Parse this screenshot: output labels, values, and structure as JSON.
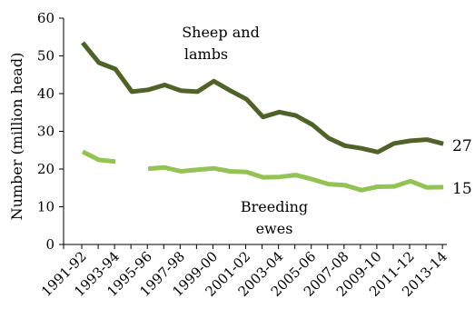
{
  "chart_data": {
    "type": "line",
    "title": "",
    "xlabel": "",
    "ylabel": "Number (million head)",
    "ylim": [
      0,
      60
    ],
    "yticks": [
      0,
      10,
      20,
      30,
      40,
      50,
      60
    ],
    "grid": false,
    "legend": "none",
    "x": [
      "1991-92",
      "1992-93",
      "1993-94",
      "1994-95",
      "1995-96",
      "1996-97",
      "1997-98",
      "1998-99",
      "1999-00",
      "2000-01",
      "2001-02",
      "2002-03",
      "2003-04",
      "2004-05",
      "2005-06",
      "2006-07",
      "2007-08",
      "2008-09",
      "2009-10",
      "2010-11",
      "2011-12",
      "2012-13",
      "2013-14"
    ],
    "xtick_labels": [
      "1991-92",
      "1993-94",
      "1995-96",
      "1997-98",
      "1999-00",
      "2001-02",
      "2003-04",
      "2005-06",
      "2007-08",
      "2009-10",
      "2011-12",
      "2013-14"
    ],
    "series": [
      {
        "name": "Sheep and lambs",
        "color": "#4f6228",
        "end_label": "27",
        "values": [
          53.5,
          48.2,
          46.5,
          40.5,
          41.0,
          42.3,
          40.8,
          40.5,
          43.3,
          40.8,
          38.5,
          33.8,
          35.1,
          34.2,
          31.8,
          28.2,
          26.2,
          25.5,
          24.5,
          26.8,
          27.5,
          27.8,
          26.7
        ]
      },
      {
        "name": "Breeding ewes",
        "color": "#92c353",
        "end_label": "15",
        "values": [
          24.6,
          22.4,
          22.0,
          null,
          20.1,
          20.4,
          19.4,
          19.8,
          20.2,
          19.4,
          19.2,
          17.8,
          17.9,
          18.4,
          17.3,
          16.0,
          15.7,
          14.4,
          15.3,
          15.4,
          16.8,
          15.1,
          15.2
        ]
      }
    ],
    "annotations": [
      {
        "line1": "Sheep and",
        "line2": "lambs"
      },
      {
        "line1": "Breeding",
        "line2": "ewes"
      }
    ]
  }
}
